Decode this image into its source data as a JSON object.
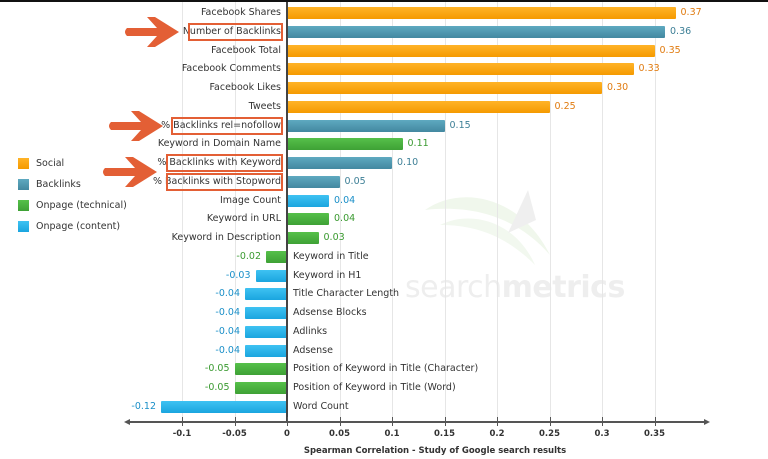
{
  "chart_data": {
    "type": "bar",
    "orientation": "horizontal",
    "title": "",
    "xlabel": "Spearman Correlation - Study of Google search results",
    "ylabel": "",
    "xlim": [
      -0.14,
      0.39
    ],
    "x_ticks": [
      "-0.1",
      "-0.05",
      "0",
      "0.05",
      "0.1",
      "0.15",
      "0.2",
      "0.25",
      "0.3",
      "0.35"
    ],
    "grid": "vertical",
    "legend_position": "left",
    "legend": [
      {
        "name": "Social",
        "color": "#f8a30f"
      },
      {
        "name": "Backlinks",
        "color": "#4f97ae"
      },
      {
        "name": "Onpage (technical)",
        "color": "#48b03e"
      },
      {
        "name": "Onpage (content)",
        "color": "#2cb3e8"
      }
    ],
    "categories": [
      "Facebook Shares",
      "Number of Backlinks",
      "Facebook Total",
      "Facebook Comments",
      "Facebook Likes",
      "Tweets",
      "% Backlinks rel=nofollow",
      "Keyword in Domain Name",
      "% Backlinks with Keyword",
      "% Backlinks with Stopword",
      "Image Count",
      "Keyword in URL",
      "Keyword in Description",
      "Keyword in Title",
      "Keyword in H1",
      "Title Character Length",
      "Adsense Blocks",
      "Adlinks",
      "Adsense",
      "Position of Keyword in Title (Character)",
      "Position of Keyword in Title (Word)",
      "Word Count"
    ],
    "values": [
      0.37,
      0.36,
      0.35,
      0.33,
      0.3,
      0.25,
      0.15,
      0.11,
      0.1,
      0.05,
      0.04,
      0.04,
      0.03,
      -0.02,
      -0.03,
      -0.04,
      -0.04,
      -0.04,
      -0.04,
      -0.05,
      -0.05,
      -0.12
    ],
    "value_labels": [
      "0.37",
      "0.36",
      "0.35",
      "0.33",
      "0.30",
      "0.25",
      "0.15",
      "0.11",
      "0.10",
      "0.05",
      "0.04",
      "0.04",
      "0.03",
      "-0.02",
      "-0.03",
      "-0.04",
      "-0.04",
      "-0.04",
      "-0.04",
      "-0.05",
      "-0.05",
      "-0.12"
    ],
    "groups": [
      "Social",
      "Backlinks",
      "Social",
      "Social",
      "Social",
      "Social",
      "Backlinks",
      "Onpage (technical)",
      "Backlinks",
      "Backlinks",
      "Onpage (content)",
      "Onpage (technical)",
      "Onpage (technical)",
      "Onpage (technical)",
      "Onpage (content)",
      "Onpage (content)",
      "Onpage (content)",
      "Onpage (content)",
      "Onpage (content)",
      "Onpage (technical)",
      "Onpage (technical)",
      "Onpage (content)"
    ],
    "annotations": {
      "highlighted_categories": [
        "Number of Backlinks",
        "% Backlinks rel=nofollow",
        "% Backlinks with Keyword",
        "% Backlinks with Stopword"
      ],
      "highlight_color": "#e35f35",
      "arrows": 3
    },
    "watermark": {
      "light": "search",
      "bold": "metrics"
    }
  },
  "colors": {
    "social": "#f8a30f",
    "backlinks": "#4f97ae",
    "technical": "#48b03e",
    "content": "#2cb3e8",
    "social_label": "#e07b10",
    "backlinks_label": "#3d7f96",
    "technical_label": "#3a9a30",
    "content_label": "#1a8fc8",
    "annotation": "#e35f35"
  }
}
